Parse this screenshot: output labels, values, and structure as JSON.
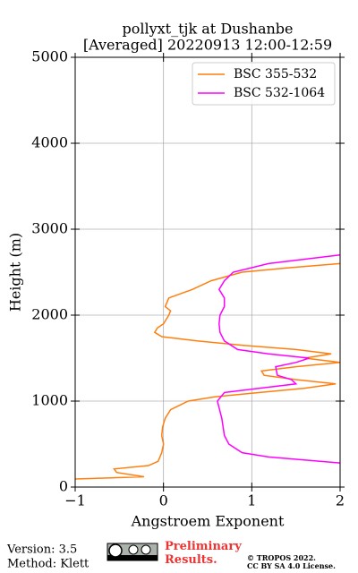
{
  "chart_data": {
    "type": "line",
    "title": "pollyxt_tjk at Dushanbe",
    "subtitle": "[Averaged] 20220913 12:00-12:59",
    "xlabel": "Angstroem Exponent",
    "ylabel": "Height (m)",
    "xlim": [
      -1,
      2
    ],
    "ylim": [
      0,
      5000
    ],
    "xticks": [
      {
        "value": -1,
        "label": "−1"
      },
      0,
      1,
      2
    ],
    "yticks": [
      0,
      1000,
      2000,
      3000,
      4000,
      5000
    ],
    "grid": true,
    "legend": "upper right",
    "series": [
      {
        "name": "BSC 355-532",
        "color": "#ff7f0e",
        "y": [
          94,
          120,
          170,
          210,
          250,
          300,
          400,
          500,
          600,
          700,
          800,
          900,
          1000,
          1050,
          1100,
          1150,
          1200,
          1250,
          1300,
          1350,
          1400,
          1450,
          1500,
          1550,
          1600,
          1650,
          1700,
          1750,
          1800,
          1850,
          1900,
          2000,
          2050,
          2100,
          2200,
          2300,
          2400,
          2500,
          2550,
          2600
        ],
        "values": [
          -1.0,
          -0.22,
          -0.53,
          -0.56,
          -0.17,
          -0.06,
          -0.02,
          0.0,
          -0.02,
          -0.01,
          0.02,
          0.08,
          0.28,
          0.58,
          1.09,
          1.6,
          1.95,
          1.5,
          1.14,
          1.11,
          1.5,
          2.0,
          1.6,
          1.9,
          1.5,
          0.89,
          0.38,
          -0.02,
          -0.1,
          -0.07,
          0.0,
          0.06,
          0.08,
          0.02,
          0.06,
          0.33,
          0.54,
          0.89,
          1.4,
          2.0
        ]
      },
      {
        "name": "BSC 532-1064",
        "color": "#ff00ff",
        "y": [
          280,
          350,
          400,
          500,
          600,
          800,
          1000,
          1100,
          1150,
          1200,
          1250,
          1300,
          1400,
          1450,
          1500,
          1550,
          1600,
          1700,
          1800,
          1900,
          2000,
          2100,
          2200,
          2300,
          2400,
          2500,
          2600,
          2700
        ],
        "values": [
          2.0,
          1.19,
          0.89,
          0.74,
          0.69,
          0.66,
          0.61,
          0.69,
          1.09,
          1.5,
          1.45,
          1.29,
          1.27,
          1.5,
          1.65,
          1.19,
          0.84,
          0.69,
          0.64,
          0.63,
          0.64,
          0.69,
          0.69,
          0.63,
          0.69,
          0.79,
          1.19,
          2.0
        ]
      }
    ]
  },
  "footer": {
    "version": "Version: 3.5",
    "method": "Method: Klett",
    "notice": "Preliminary Results.",
    "copyright": "© TROPOS 2022.",
    "license": "CC BY SA 4.0 License."
  }
}
